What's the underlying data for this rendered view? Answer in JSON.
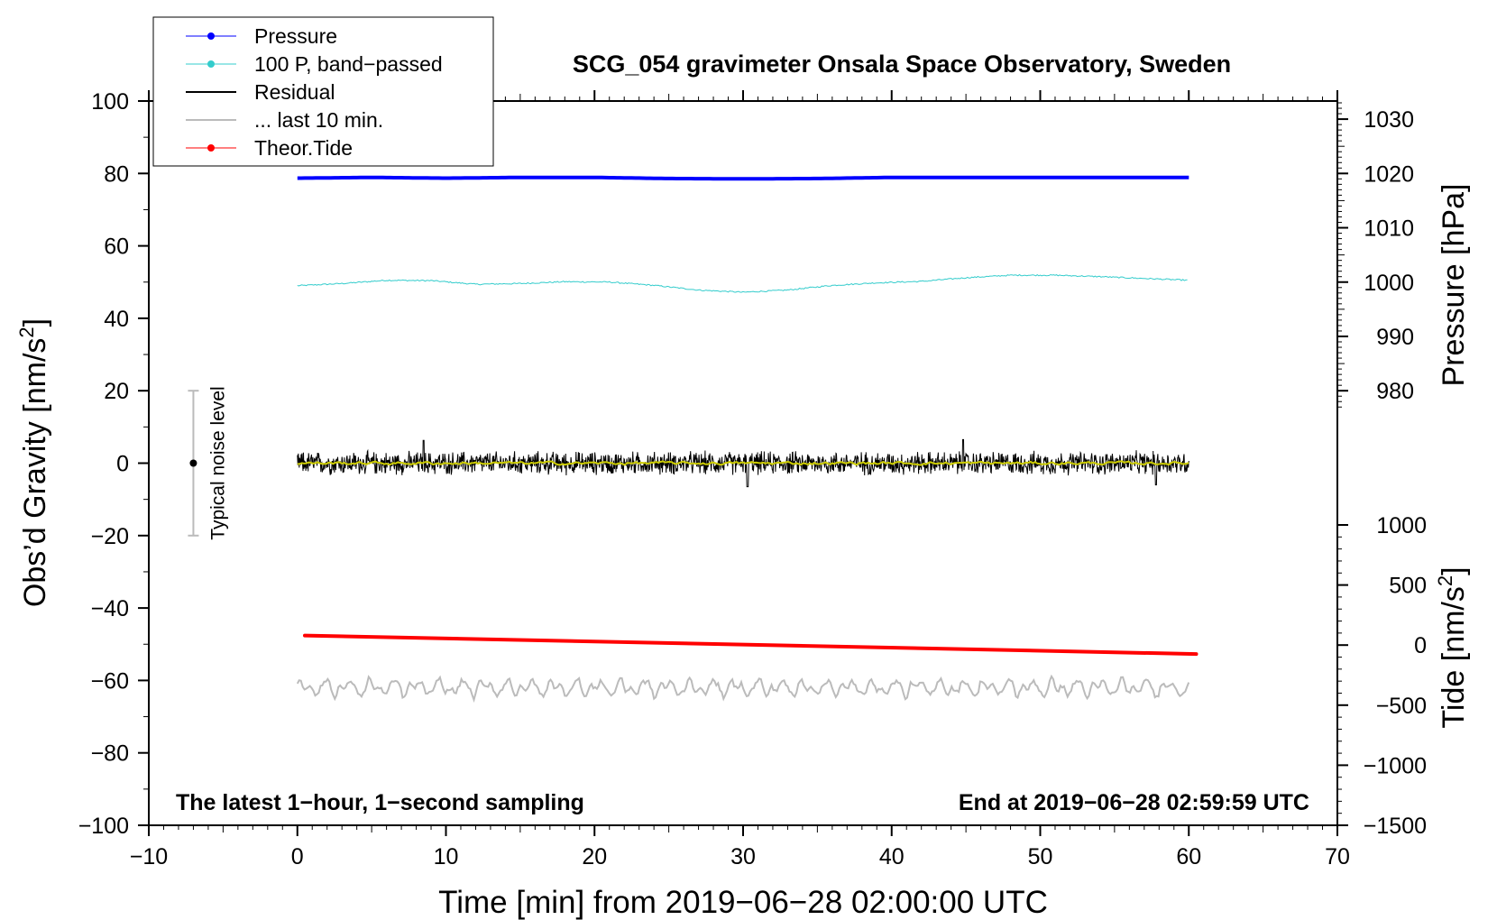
{
  "chart_data": {
    "type": "line",
    "title": "SCG_054 gravimeter Onsala Space Observatory, Sweden",
    "xlabel": "Time [min] from 2019−06−28 02:00:00 UTC",
    "ylabel_left_main": "Obs’d Gravity [nm/s",
    "ylabel_left_sup": "2",
    "ylabel_left_end": "]",
    "ylabel_right_pressure": "Pressure [hPa]",
    "ylabel_right_tide_main": "Tide [nm/s",
    "ylabel_right_tide_sup": "2",
    "ylabel_right_tide_end": "]",
    "xlim": [
      -10,
      70
    ],
    "ylim": [
      -100,
      100
    ],
    "x_ticks": [
      "−10",
      "0",
      "10",
      "20",
      "30",
      "40",
      "50",
      "60",
      "70"
    ],
    "y_ticks": [
      "−100",
      "−80",
      "−60",
      "−40",
      "−20",
      "0",
      "20",
      "40",
      "60",
      "80",
      "100"
    ],
    "pressure_axis": {
      "ticks": [
        "980",
        "990",
        "1000",
        "1010",
        "1020",
        "1030"
      ],
      "range_hpa": [
        980,
        1030
      ],
      "gravity_equiv": [
        20,
        95
      ]
    },
    "tide_axis": {
      "ticks": [
        "−1500",
        "−1000",
        "−500",
        "0",
        "500",
        "1000"
      ],
      "range": [
        -1500,
        1000
      ]
    },
    "legend": [
      {
        "label": "Pressure",
        "color": "#0000ff",
        "marker": true
      },
      {
        "label": "100 P, band−passed",
        "color": "#33cccc",
        "marker": true
      },
      {
        "label": "Residual",
        "color": "#000000",
        "marker": false
      },
      {
        "label": "... last 10 min.",
        "color": "#bbbbbb",
        "marker": false
      },
      {
        "label": "Theor.Tide",
        "color": "#ff0000",
        "marker": true
      }
    ],
    "legend_position": "top-left",
    "series": [
      {
        "name": "Pressure",
        "color": "#0000ff",
        "x": [
          0,
          5,
          10,
          15,
          20,
          25,
          30,
          35,
          40,
          45,
          50,
          55,
          60
        ],
        "values": [
          78.7,
          78.9,
          78.7,
          78.9,
          78.9,
          78.6,
          78.5,
          78.6,
          78.9,
          78.9,
          78.9,
          78.9,
          78.9
        ]
      },
      {
        "name": "100 P, band−passed",
        "color": "#33cccc",
        "x": [
          0,
          3,
          6,
          9,
          12,
          15,
          18,
          21,
          24,
          27,
          30,
          33,
          36,
          39,
          42,
          45,
          48,
          51,
          54,
          57,
          60
        ],
        "values": [
          49,
          49.6,
          50.5,
          50.4,
          49.4,
          49.6,
          50.1,
          50,
          49.1,
          47.8,
          47.2,
          47.8,
          49.1,
          49.8,
          50.2,
          51.2,
          51.9,
          51.9,
          51.5,
          51,
          50.5
        ]
      },
      {
        "name": "Residual",
        "color": "#000000",
        "x_range": [
          0,
          60
        ],
        "center": 0,
        "amplitude": 2.5,
        "peaks": [
          [
            8.5,
            6.3
          ],
          [
            30.3,
            -6.5
          ],
          [
            44.8,
            6.5
          ],
          [
            57.8,
            -6
          ]
        ]
      },
      {
        "name": "Residual smoothed",
        "color": "#cccc00",
        "x_range": [
          0,
          60
        ],
        "center": 0,
        "amplitude": 0.8
      },
      {
        "name": "... last 10 min.",
        "color": "#bbbbbb",
        "x_range": [
          0,
          60
        ],
        "center": -62,
        "amplitude": 2.8
      },
      {
        "name": "Theor.Tide",
        "color": "#ff0000",
        "x": [
          0.5,
          60.5
        ],
        "values": [
          -47.6,
          -52.7
        ]
      }
    ],
    "noise_bar": {
      "label": "Typical noise level",
      "x": -7,
      "ymin": -20,
      "ymax": 20
    },
    "annotation_left": "The latest 1−hour, 1−second sampling",
    "annotation_right": "End at 2019−06−28 02:59:59 UTC"
  }
}
